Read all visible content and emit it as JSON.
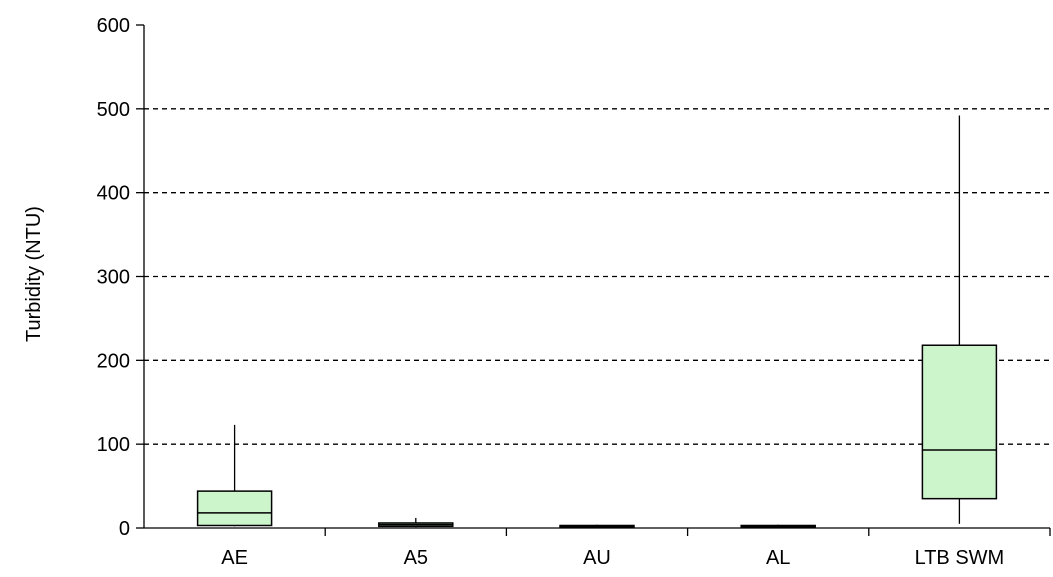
{
  "chart_data": {
    "type": "box",
    "title": "",
    "xlabel": "",
    "ylabel": "Turbidity (NTU)",
    "ylim": [
      0,
      600
    ],
    "yticks": [
      0,
      100,
      200,
      300,
      400,
      500,
      600
    ],
    "grid": "horizontal dashed",
    "categories": [
      "AE",
      "A5",
      "AU",
      "AL",
      "LTB SWM"
    ],
    "boxes": [
      {
        "category": "AE",
        "min": 2,
        "q1": 3,
        "median": 18,
        "q3": 44,
        "max": 123
      },
      {
        "category": "A5",
        "min": 1,
        "q1": 2,
        "median": 4,
        "q3": 6,
        "max": 12
      },
      {
        "category": "AU",
        "min": 1,
        "q1": 1,
        "median": 2,
        "q3": 3,
        "max": 4
      },
      {
        "category": "AL",
        "min": 1,
        "q1": 1,
        "median": 2,
        "q3": 3,
        "max": 4
      },
      {
        "category": "LTB SWM",
        "min": 5,
        "q1": 35,
        "median": 93,
        "q3": 218,
        "max": 492
      }
    ],
    "box_fill": "#ccf5cc",
    "line_color": "#000000",
    "grid_color": "#000000"
  }
}
